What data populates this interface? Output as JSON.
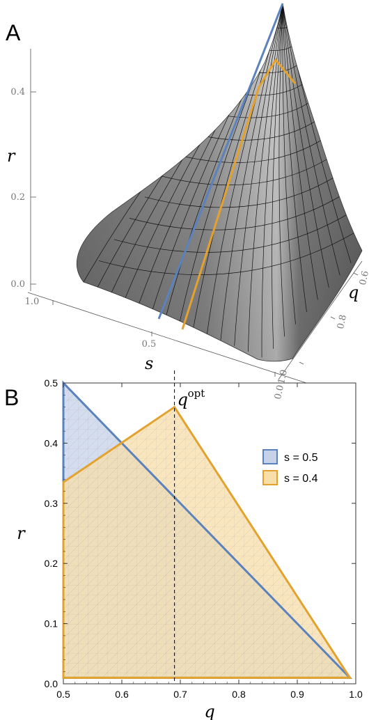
{
  "chart_data": [
    {
      "panel": "A",
      "type": "surface3d",
      "x_axis": {
        "label": "q",
        "ticks": [
          "0.6",
          "0.8",
          "1.0"
        ]
      },
      "y_axis": {
        "label": "s",
        "ticks": [
          "1.0",
          "0.5",
          "0.0"
        ]
      },
      "z_axis": {
        "label": "r",
        "ticks": [
          "0.0",
          "0.2",
          "0.4"
        ]
      },
      "highlighted_slices": [
        {
          "s": 0.5,
          "color": "#5b82bd"
        },
        {
          "s": 0.4,
          "color": "#e3a22d"
        }
      ],
      "surface_color": "#8c8c8c"
    },
    {
      "panel": "B",
      "type": "area",
      "xlabel": "q",
      "ylabel": "r",
      "xlim": [
        0.5,
        1.0
      ],
      "ylim": [
        0.0,
        0.5
      ],
      "xticks": [
        "0.5",
        "0.6",
        "0.7",
        "0.8",
        "0.9",
        "1.0"
      ],
      "yticks": [
        "0.0",
        "0.1",
        "0.2",
        "0.3",
        "0.4",
        "0.5"
      ],
      "series": [
        {
          "name": "s = 0.5",
          "color": "#5b82bd",
          "fill": "#c6d2e8",
          "x": [
            0.5,
            0.5,
            0.99
          ],
          "y": [
            0.5,
            0.01,
            0.01
          ]
        },
        {
          "name": "s = 0.4",
          "color": "#e3a22d",
          "fill": "#f8dea8",
          "x": [
            0.5,
            0.5,
            0.69,
            0.99
          ],
          "y": [
            0.01,
            0.335,
            0.46,
            0.01
          ]
        }
      ],
      "reference_line": {
        "x": 0.69,
        "label_base": "q",
        "label_sup": "opt"
      },
      "legend_position": "right",
      "grid": false
    }
  ]
}
